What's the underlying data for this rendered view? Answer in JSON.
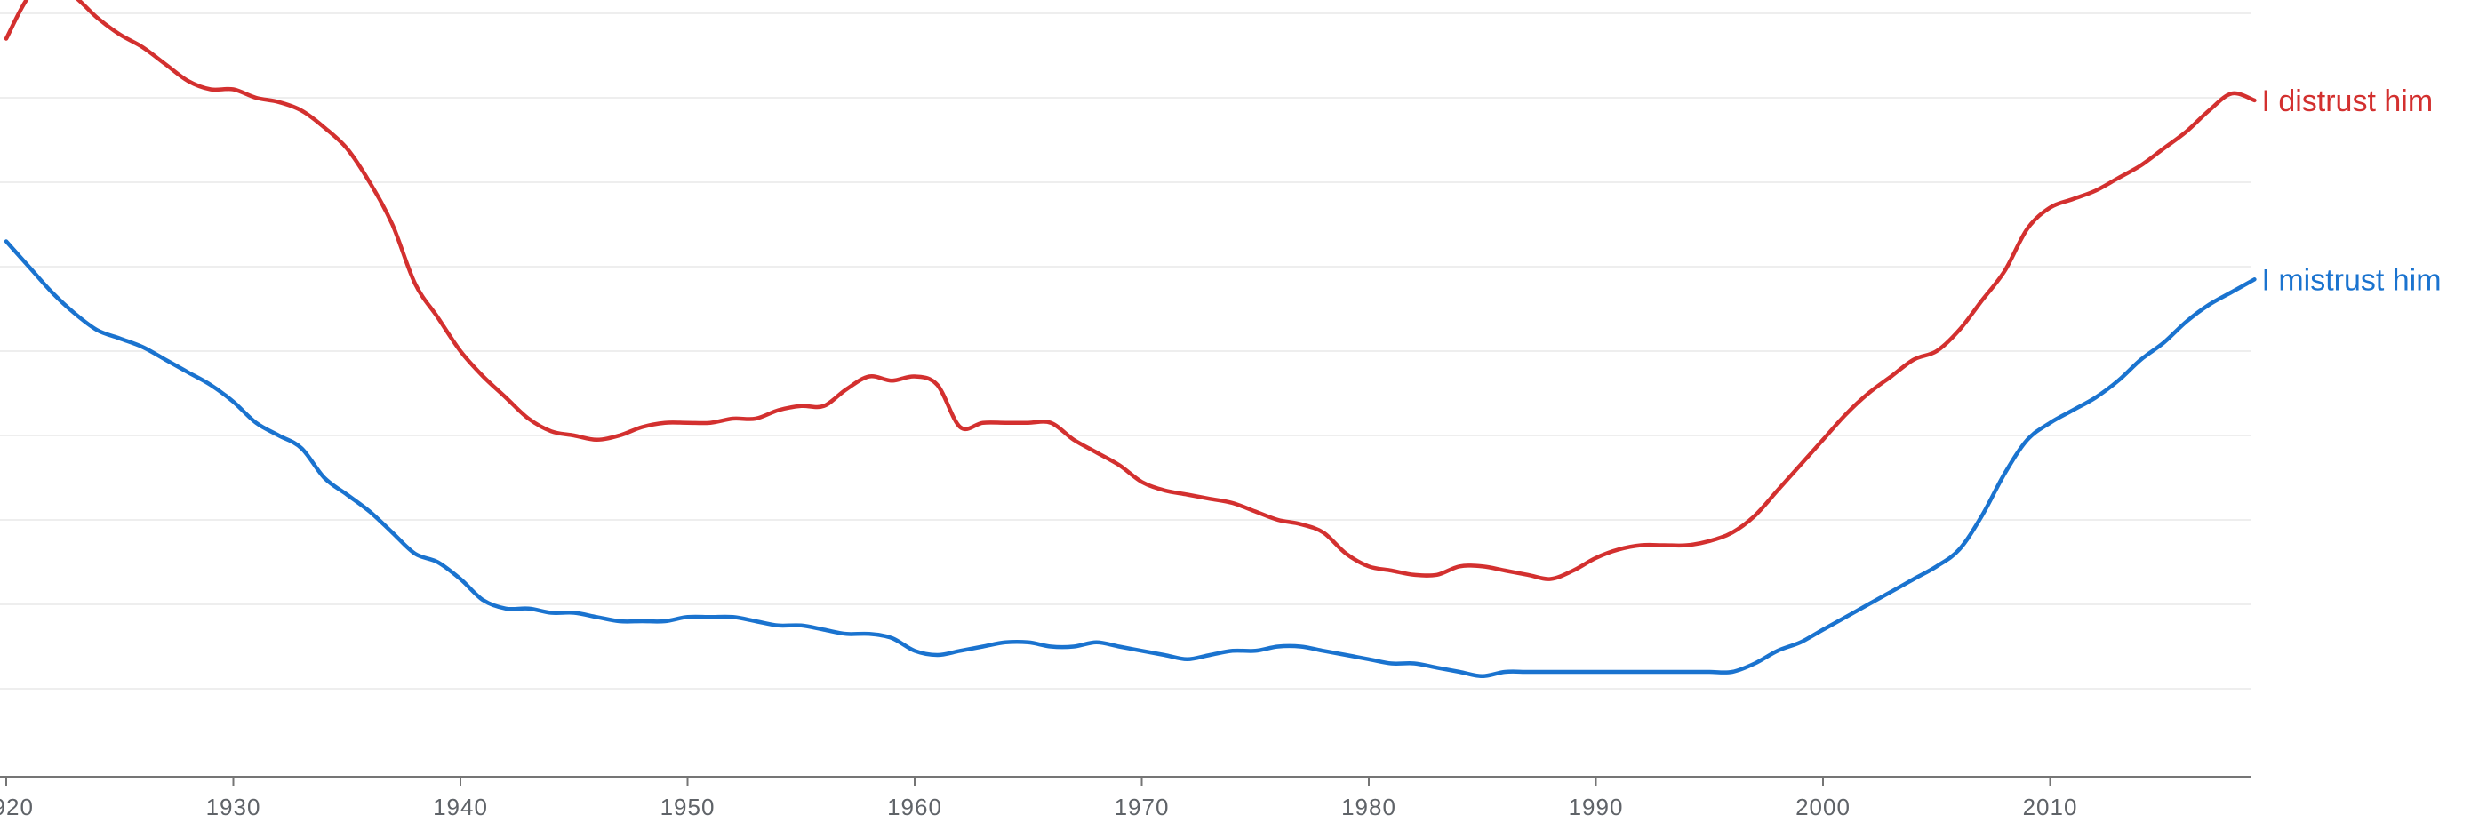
{
  "chart_data": {
    "type": "line",
    "title": "",
    "xlabel": "",
    "ylabel": "",
    "xlim": [
      1920,
      2019
    ],
    "ylim": [
      0,
      9
    ],
    "grid": true,
    "x_ticks": [
      1920,
      1930,
      1940,
      1950,
      1960,
      1970,
      1980,
      1990,
      2000,
      2010
    ],
    "x_tick_labels": [
      "1920",
      "1930",
      "1940",
      "1950",
      "1960",
      "1970",
      "1980",
      "1990",
      "2000",
      "2010"
    ],
    "x": [
      1920,
      1921,
      1922,
      1923,
      1924,
      1925,
      1926,
      1927,
      1928,
      1929,
      1930,
      1931,
      1932,
      1933,
      1934,
      1935,
      1936,
      1937,
      1938,
      1939,
      1940,
      1941,
      1942,
      1943,
      1944,
      1945,
      1946,
      1947,
      1948,
      1949,
      1950,
      1951,
      1952,
      1953,
      1954,
      1955,
      1956,
      1957,
      1958,
      1959,
      1960,
      1961,
      1962,
      1963,
      1964,
      1965,
      1966,
      1967,
      1968,
      1969,
      1970,
      1971,
      1972,
      1973,
      1974,
      1975,
      1976,
      1977,
      1978,
      1979,
      1980,
      1981,
      1982,
      1983,
      1984,
      1985,
      1986,
      1987,
      1988,
      1989,
      1990,
      1991,
      1992,
      1993,
      1994,
      1995,
      1996,
      1997,
      1998,
      1999,
      2000,
      2001,
      2002,
      2003,
      2004,
      2005,
      2006,
      2007,
      2008,
      2009,
      2010,
      2011,
      2012,
      2013,
      2014,
      2015,
      2016,
      2017,
      2018,
      2019
    ],
    "series": [
      {
        "name": "I distrust him",
        "color": "#d3302f",
        "values": [
          8.7,
          9.2,
          9.35,
          9.2,
          8.95,
          8.75,
          8.6,
          8.4,
          8.2,
          8.1,
          8.1,
          8.0,
          7.95,
          7.85,
          7.65,
          7.4,
          7.0,
          6.5,
          5.8,
          5.4,
          5.0,
          4.7,
          4.45,
          4.2,
          4.05,
          4.0,
          3.95,
          4.0,
          4.1,
          4.15,
          4.15,
          4.15,
          4.2,
          4.2,
          4.3,
          4.35,
          4.35,
          4.55,
          4.7,
          4.65,
          4.7,
          4.6,
          4.1,
          4.15,
          4.15,
          4.15,
          4.15,
          3.95,
          3.8,
          3.65,
          3.45,
          3.35,
          3.3,
          3.25,
          3.2,
          3.1,
          3.0,
          2.95,
          2.85,
          2.6,
          2.45,
          2.4,
          2.35,
          2.35,
          2.45,
          2.45,
          2.4,
          2.35,
          2.3,
          2.4,
          2.55,
          2.65,
          2.7,
          2.7,
          2.7,
          2.75,
          2.85,
          3.05,
          3.35,
          3.65,
          3.95,
          4.25,
          4.5,
          4.7,
          4.9,
          5.0,
          5.25,
          5.6,
          5.95,
          6.45,
          6.7,
          6.8,
          6.9,
          7.05,
          7.2,
          7.4,
          7.6,
          7.85,
          8.05,
          7.97
        ]
      },
      {
        "name": "I mistrust him",
        "color": "#1a73cf",
        "values": [
          6.3,
          6.0,
          5.7,
          5.45,
          5.25,
          5.15,
          5.05,
          4.9,
          4.75,
          4.6,
          4.4,
          4.15,
          4.0,
          3.85,
          3.5,
          3.3,
          3.1,
          2.85,
          2.6,
          2.5,
          2.3,
          2.05,
          1.95,
          1.95,
          1.9,
          1.9,
          1.85,
          1.8,
          1.8,
          1.8,
          1.85,
          1.85,
          1.85,
          1.8,
          1.75,
          1.75,
          1.7,
          1.65,
          1.65,
          1.6,
          1.45,
          1.4,
          1.45,
          1.5,
          1.55,
          1.55,
          1.5,
          1.5,
          1.55,
          1.5,
          1.45,
          1.4,
          1.35,
          1.4,
          1.45,
          1.45,
          1.5,
          1.5,
          1.45,
          1.4,
          1.35,
          1.3,
          1.3,
          1.25,
          1.2,
          1.15,
          1.2,
          1.2,
          1.2,
          1.2,
          1.2,
          1.2,
          1.2,
          1.2,
          1.2,
          1.2,
          1.2,
          1.3,
          1.45,
          1.55,
          1.7,
          1.85,
          2.0,
          2.15,
          2.3,
          2.45,
          2.65,
          3.05,
          3.55,
          3.95,
          4.15,
          4.3,
          4.45,
          4.65,
          4.9,
          5.1,
          5.35,
          5.55,
          5.7,
          5.85
        ]
      }
    ]
  }
}
